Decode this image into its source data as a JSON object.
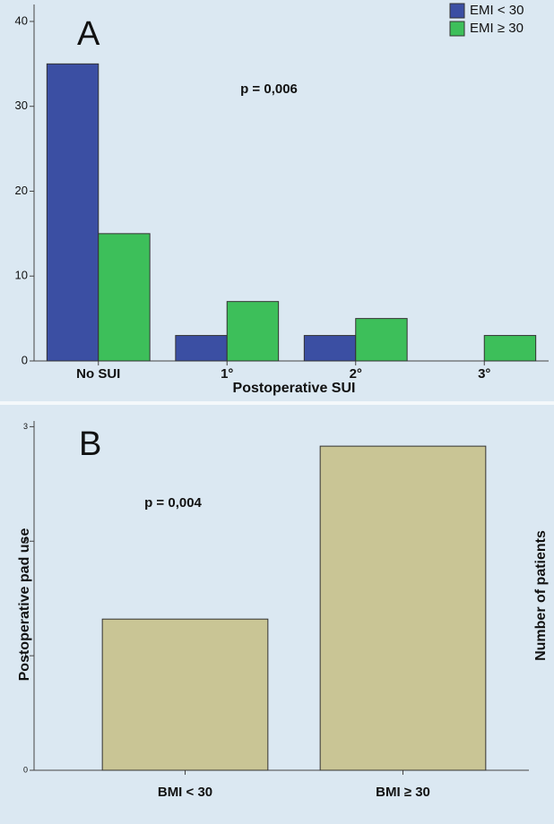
{
  "chart_data": [
    {
      "type": "bar",
      "panel_label": "A",
      "annotation": "p = 0,006",
      "xlabel": "Postoperative SUI",
      "categories": [
        "No SUI",
        "1°",
        "2°",
        "3°"
      ],
      "series": [
        {
          "name": "EMI < 30",
          "color": "#3b4fa3",
          "values": [
            35,
            3,
            3,
            0
          ]
        },
        {
          "name": "EMI ≥ 30",
          "color": "#3dbf5a",
          "values": [
            15,
            7,
            5,
            3
          ]
        }
      ],
      "ylim": [
        0,
        42
      ],
      "yticks": [
        0,
        10,
        20,
        30,
        40
      ],
      "legend": "upper right"
    },
    {
      "type": "bar",
      "panel_label": "B",
      "annotation": "p = 0,004",
      "ylabel": "Postoperative pad use",
      "ylabel_right": "Number of patients",
      "categories": [
        "BMI < 30",
        "BMI ≥ 30"
      ],
      "values": [
        1.32,
        2.83
      ],
      "color": "#c9c595",
      "ylim": [
        0,
        3.05
      ],
      "yticks": [
        0,
        1,
        2,
        3
      ]
    }
  ]
}
